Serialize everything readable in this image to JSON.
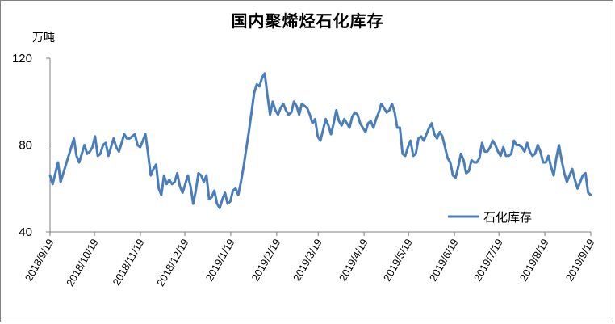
{
  "chart_data": {
    "type": "line",
    "title": "国内聚烯烃石化库存",
    "ylabel": "万吨",
    "xlabel": "",
    "ylim": [
      40,
      120
    ],
    "yticks": [
      40,
      80,
      120
    ],
    "x_tick_labels": [
      "2018/9/19",
      "2018/10/19",
      "2018/11/19",
      "2018/12/19",
      "2019/1/19",
      "2019/2/19",
      "2019/3/19",
      "2019/4/19",
      "2019/5/19",
      "2019/6/19",
      "2019/7/19",
      "2019/8/19",
      "2019/9/19"
    ],
    "legend_position": "bottom-right",
    "grid": false,
    "colors": {
      "series": "#4a7ebb"
    },
    "series": [
      {
        "name": "石化库存",
        "start_date": "2018/9/19",
        "values": [
          66,
          62,
          67,
          72,
          63,
          67,
          71,
          75,
          79,
          83,
          75,
          72,
          76,
          80,
          76,
          77,
          79,
          84,
          75,
          76,
          80,
          81,
          75,
          79,
          83,
          79,
          77,
          81,
          85,
          83,
          83,
          84,
          85,
          80,
          79,
          82,
          85,
          76,
          66,
          69,
          71,
          60,
          57,
          66,
          62,
          64,
          62,
          63,
          67,
          61,
          58,
          62,
          66,
          61,
          53,
          59,
          67,
          66,
          63,
          66,
          55,
          56,
          59,
          53,
          51,
          55,
          58,
          53,
          54,
          59,
          60,
          57,
          63,
          70,
          78,
          86,
          95,
          104,
          108,
          107,
          111,
          113,
          103,
          94,
          100,
          96,
          94,
          97,
          99,
          96,
          94,
          95,
          100,
          98,
          94,
          99,
          98,
          97,
          94,
          90,
          92,
          84,
          82,
          87,
          92,
          89,
          85,
          90,
          96,
          91,
          89,
          92,
          90,
          88,
          93,
          95,
          94,
          90,
          88,
          86,
          90,
          91,
          88,
          92,
          95,
          99,
          97,
          95,
          96,
          99,
          95,
          88,
          88,
          76,
          75,
          79,
          82,
          75,
          76,
          83,
          84,
          82,
          85,
          88,
          90,
          85,
          83,
          86,
          84,
          79,
          74,
          72,
          66,
          65,
          70,
          76,
          73,
          67,
          68,
          73,
          72,
          72,
          74,
          81,
          77,
          77,
          79,
          82,
          80,
          77,
          75,
          79,
          75,
          75,
          76,
          82,
          80,
          80,
          79,
          77,
          81,
          77,
          75,
          76,
          80,
          77,
          72,
          72,
          75,
          70,
          66,
          74,
          80,
          73,
          67,
          63,
          66,
          69,
          64,
          60,
          63,
          66,
          67,
          58,
          57
        ]
      }
    ]
  }
}
